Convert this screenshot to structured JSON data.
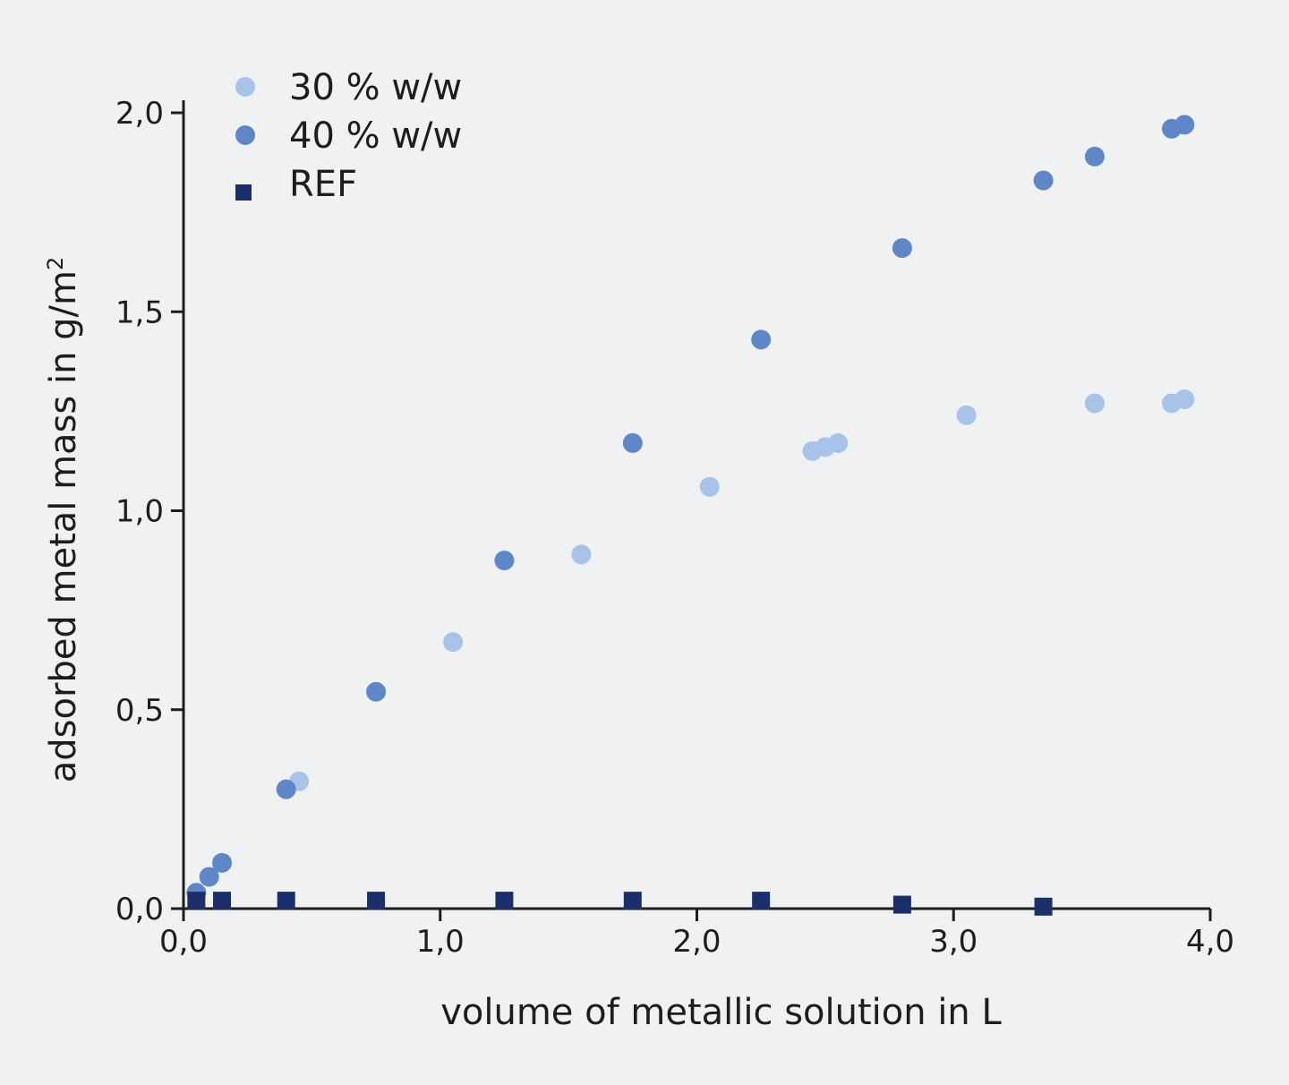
{
  "chart_data": {
    "type": "scatter",
    "xlabel": "volume of metallic solution in L",
    "ylabel": "adsorbed metal mass in g/m",
    "ylabel_superscript": "2",
    "xlim": [
      0,
      4
    ],
    "ylim": [
      0,
      2
    ],
    "x_ticks": [
      {
        "value": 0,
        "label": "0,0"
      },
      {
        "value": 1,
        "label": "1,0"
      },
      {
        "value": 2,
        "label": "2,0"
      },
      {
        "value": 3,
        "label": "3,0"
      },
      {
        "value": 4,
        "label": "4,0"
      }
    ],
    "y_ticks": [
      {
        "value": 0,
        "label": "0,0"
      },
      {
        "value": 0.5,
        "label": "0,5"
      },
      {
        "value": 1,
        "label": "1,0"
      },
      {
        "value": 1.5,
        "label": "1,5"
      },
      {
        "value": 2,
        "label": "2,0"
      }
    ],
    "grid": false,
    "legend_position": "top-left",
    "series": [
      {
        "name": "30 % w/w",
        "marker": "circle",
        "color": "#a9c2e8",
        "x": [
          0.45,
          1.05,
          1.55,
          2.05,
          2.45,
          2.5,
          2.55,
          3.05,
          3.55,
          3.85,
          3.9
        ],
        "y": [
          0.32,
          0.67,
          0.89,
          1.06,
          1.15,
          1.16,
          1.17,
          1.24,
          1.27,
          1.27,
          1.28
        ]
      },
      {
        "name": "40 % w/w",
        "marker": "circle",
        "color": "#5f87c8",
        "x": [
          0.05,
          0.1,
          0.15,
          0.4,
          0.75,
          1.25,
          1.75,
          2.25,
          2.8,
          3.35,
          3.55,
          3.85,
          3.9
        ],
        "y": [
          0.04,
          0.08,
          0.115,
          0.3,
          0.545,
          0.875,
          1.17,
          1.43,
          1.66,
          1.83,
          1.89,
          1.96,
          1.97
        ]
      },
      {
        "name": "REF",
        "marker": "square",
        "color": "#1d2f6b",
        "x": [
          0.05,
          0.15,
          0.4,
          0.75,
          1.25,
          1.75,
          2.25,
          2.8,
          3.35
        ],
        "y": [
          0.02,
          0.02,
          0.02,
          0.02,
          0.02,
          0.02,
          0.02,
          0.01,
          0.005
        ]
      }
    ]
  }
}
